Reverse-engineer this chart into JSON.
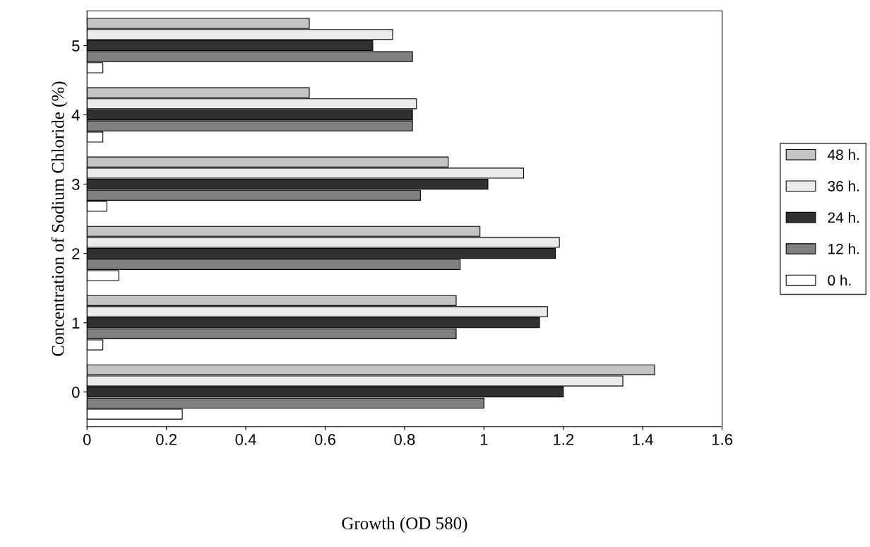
{
  "chart_data": {
    "type": "bar",
    "orientation": "horizontal",
    "xlabel": "Growth (OD 580)",
    "ylabel": "Concentration of Sodium Chloride (%)",
    "categories": [
      "5",
      "4",
      "3",
      "2",
      "1",
      "0"
    ],
    "series": [
      {
        "name": "0 h.",
        "color": "#ffffff",
        "values": [
          0.04,
          0.04,
          0.05,
          0.08,
          0.04,
          0.24
        ]
      },
      {
        "name": "12 h.",
        "color": "#808080",
        "values": [
          0.82,
          0.82,
          0.84,
          0.94,
          0.93,
          1.0
        ]
      },
      {
        "name": "24 h.",
        "color": "#303030",
        "values": [
          0.72,
          0.82,
          1.01,
          1.18,
          1.14,
          1.2
        ]
      },
      {
        "name": "36 h.",
        "color": "#ebebeb",
        "values": [
          0.77,
          0.83,
          1.1,
          1.19,
          1.16,
          1.35
        ]
      },
      {
        "name": "48 h.",
        "color": "#c4c4c4",
        "values": [
          0.56,
          0.56,
          0.91,
          0.99,
          0.93,
          1.43
        ]
      }
    ],
    "xlim": [
      0,
      1.6
    ],
    "xticks": [
      0,
      0.2,
      0.4,
      0.6,
      0.8,
      1,
      1.2,
      1.4,
      1.6
    ],
    "grid": false,
    "legend": "right"
  }
}
